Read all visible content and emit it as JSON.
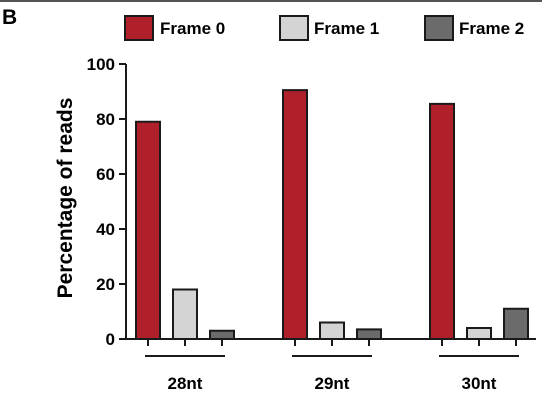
{
  "panel_label": "B",
  "colors": {
    "frame0": "#b0202a",
    "frame1": "#d4d4d4",
    "frame2": "#6b6b6b",
    "stroke": "#1a1a1a"
  },
  "chart_data": {
    "type": "bar",
    "categories": [
      "28nt",
      "29nt",
      "30nt"
    ],
    "series": [
      {
        "name": "Frame 0",
        "values": [
          79,
          90.5,
          85.5
        ]
      },
      {
        "name": "Frame 1",
        "values": [
          18,
          6,
          4
        ]
      },
      {
        "name": "Frame 2",
        "values": [
          3,
          3.5,
          11
        ]
      }
    ],
    "ylabel": "Percentage of reads",
    "xlabel": "",
    "ylim": [
      0,
      100
    ],
    "yticks": [
      "0",
      "20",
      "40",
      "60",
      "80",
      "100"
    ],
    "legend_position": "top",
    "grid": false
  }
}
